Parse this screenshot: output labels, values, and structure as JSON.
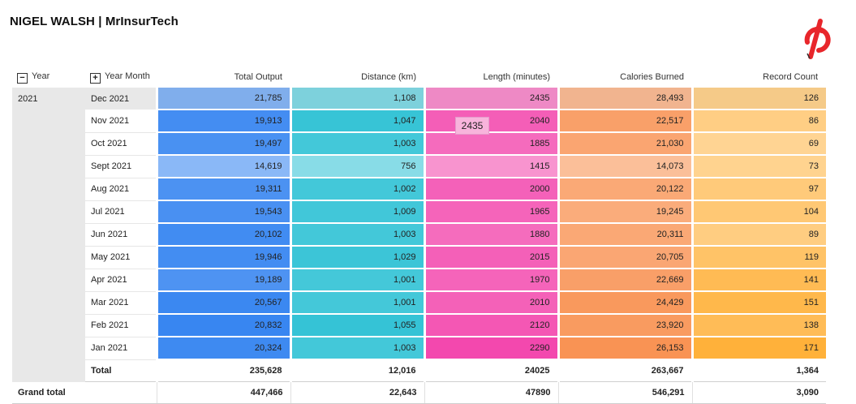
{
  "header": {
    "title": "NIGEL WALSH | MrInsurTech"
  },
  "brand": {
    "logo_icon": "peloton-logo-icon",
    "color": "#e8262b"
  },
  "pivot": {
    "dimensions": [
      {
        "label": "Year",
        "toggle": "−",
        "toggle_icon": "collapse-icon"
      },
      {
        "label": "Year Month",
        "toggle": "+",
        "toggle_icon": "expand-icon"
      }
    ],
    "metrics": [
      "Total Output",
      "Distance (km)",
      "Length (minutes)",
      "Calories Burned",
      "Record Count"
    ],
    "year": "2021",
    "rows": [
      {
        "month": "Dec 2021",
        "values": [
          "21,785",
          "1,108",
          "2435",
          "28,493",
          "126"
        ]
      },
      {
        "month": "Nov 2021",
        "values": [
          "19,913",
          "1,047",
          "2040",
          "22,517",
          "86"
        ]
      },
      {
        "month": "Oct 2021",
        "values": [
          "19,497",
          "1,003",
          "1885",
          "21,030",
          "69"
        ]
      },
      {
        "month": "Sept 2021",
        "values": [
          "14,619",
          "756",
          "1415",
          "14,073",
          "73"
        ]
      },
      {
        "month": "Aug 2021",
        "values": [
          "19,311",
          "1,002",
          "2000",
          "20,122",
          "97"
        ]
      },
      {
        "month": "Jul 2021",
        "values": [
          "19,543",
          "1,009",
          "1965",
          "19,245",
          "104"
        ]
      },
      {
        "month": "Jun 2021",
        "values": [
          "20,102",
          "1,003",
          "1880",
          "20,311",
          "89"
        ]
      },
      {
        "month": "May 2021",
        "values": [
          "19,946",
          "1,029",
          "2015",
          "20,705",
          "119"
        ]
      },
      {
        "month": "Apr 2021",
        "values": [
          "19,189",
          "1,001",
          "1970",
          "22,669",
          "141"
        ]
      },
      {
        "month": "Mar 2021",
        "values": [
          "20,567",
          "1,001",
          "2010",
          "24,429",
          "151"
        ]
      },
      {
        "month": "Feb 2021",
        "values": [
          "20,832",
          "1,055",
          "2120",
          "23,920",
          "138"
        ]
      },
      {
        "month": "Jan 2021",
        "values": [
          "20,324",
          "1,003",
          "2290",
          "26,153",
          "171"
        ]
      }
    ],
    "total": {
      "label": "Total",
      "values": [
        "235,628",
        "12,016",
        "24025",
        "263,667",
        "1,364"
      ]
    },
    "grand_total": {
      "label": "Grand total",
      "values": [
        "447,466",
        "22,643",
        "47890",
        "546,291",
        "3,090"
      ]
    },
    "tooltip": "2435",
    "colors": {
      "total_output": "#2b7ef0",
      "distance": "#26bfd3",
      "length": "#f23ca8",
      "calories": "#f88a46",
      "record_count": "#ffb13a",
      "selected_row_overlay": "#e8e8e8"
    }
  }
}
